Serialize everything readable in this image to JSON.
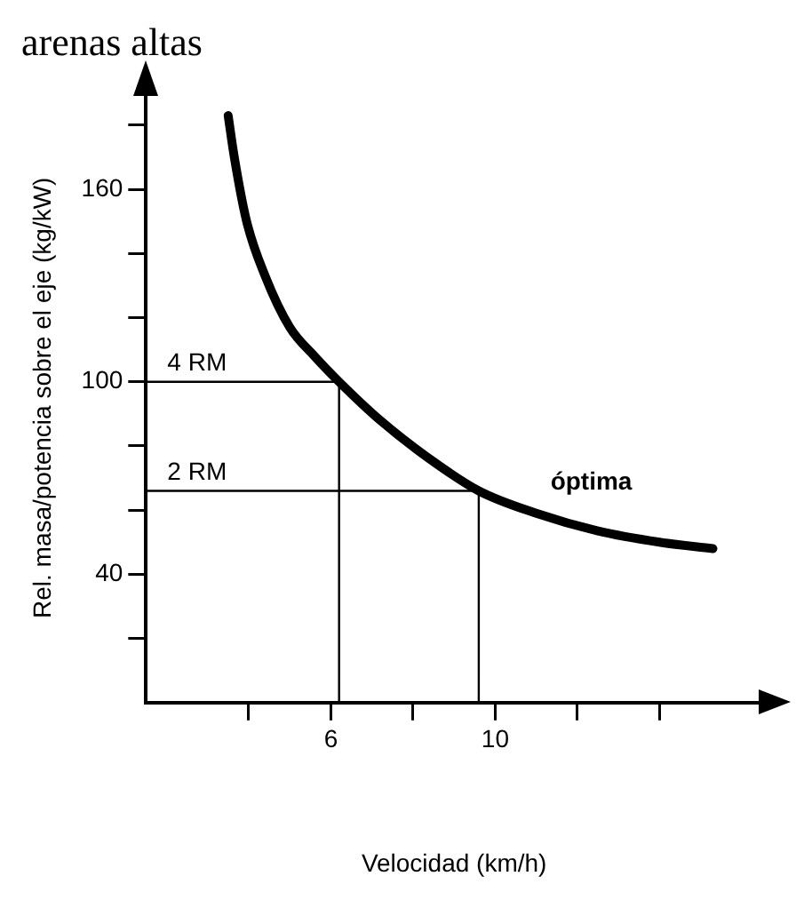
{
  "chart_data": {
    "type": "line",
    "title": "arenas altas",
    "xlabel": "Velocidad (km/h)",
    "ylabel": "Rel. masa/potencia sobre el eje (kg/kW)",
    "xlim": [
      1.5,
      16.5
    ],
    "xticks": [
      {
        "value": 4,
        "label": null
      },
      6,
      {
        "value": 8,
        "label": null
      },
      10,
      {
        "value": 12,
        "label": null
      },
      {
        "value": 14,
        "label": null
      }
    ],
    "ylim": [
      0,
      190
    ],
    "yticks": [
      {
        "value": 20,
        "label": null
      },
      40,
      {
        "value": 60,
        "label": null
      },
      {
        "value": 80,
        "label": null
      },
      100,
      {
        "value": 120,
        "label": null
      },
      {
        "value": 140,
        "label": null
      },
      160,
      {
        "value": 180,
        "label": null
      }
    ],
    "grid": false,
    "legend": false,
    "marker": "none",
    "line_style": "solid",
    "series": [
      {
        "name": "óptima",
        "color": "#000000",
        "x": [
          3.5,
          3.65,
          3.95,
          4.4,
          5.0,
          5.6,
          6.2,
          7.2,
          8.4,
          9.6,
          11,
          12.5,
          14,
          15.3
        ],
        "values": [
          183,
          170,
          150,
          133,
          117,
          108,
          100,
          88,
          76,
          66,
          59,
          53.5,
          50,
          48
        ]
      },
      {
        "name": "4 RM",
        "color": "#000000",
        "x": [
          1.5,
          6.2,
          6.2
        ],
        "values": [
          100,
          100,
          0
        ]
      },
      {
        "name": "2 RM",
        "color": "#000000",
        "x": [
          1.5,
          9.6,
          9.6
        ],
        "values": [
          66,
          66,
          0
        ]
      }
    ]
  }
}
